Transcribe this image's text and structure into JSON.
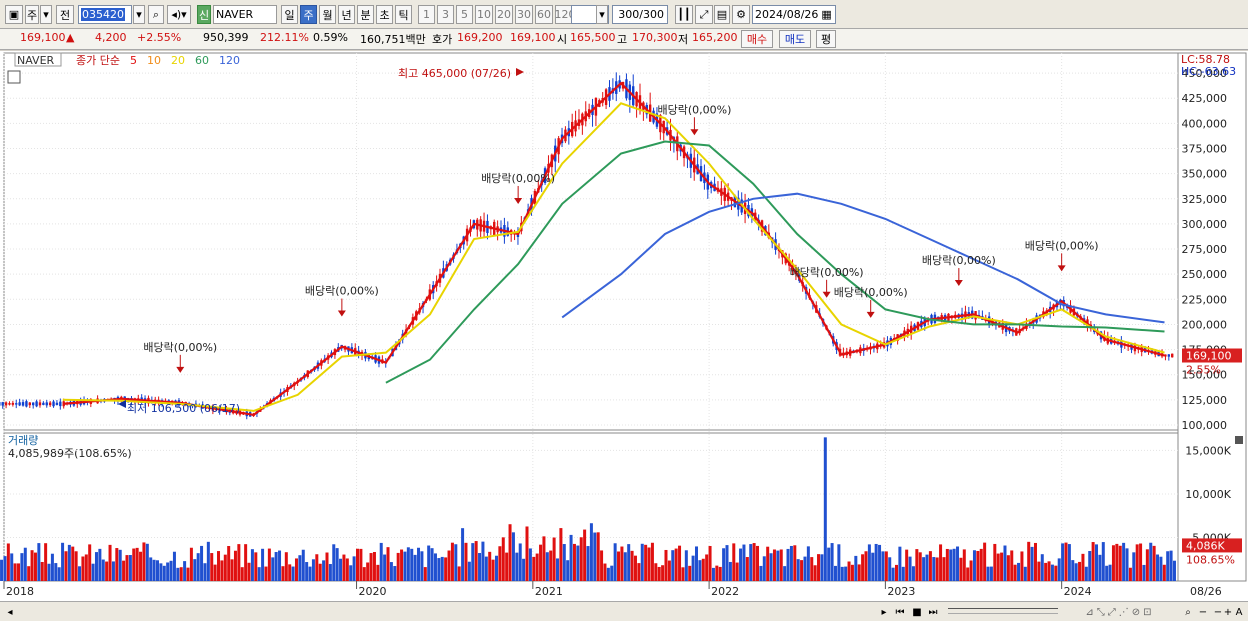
{
  "toolbar": {
    "period_label": "주",
    "prev_label": "전",
    "stock_code": "035420",
    "stock_name": "NAVER",
    "new_badge": "신",
    "timeframes": [
      {
        "label": "일",
        "active": false
      },
      {
        "label": "주",
        "active": true
      },
      {
        "label": "월",
        "active": false
      },
      {
        "label": "년",
        "active": false
      },
      {
        "label": "분",
        "active": false
      },
      {
        "label": "초",
        "active": false
      },
      {
        "label": "틱",
        "active": false
      }
    ],
    "intervals": [
      "1",
      "3",
      "5",
      "10",
      "20",
      "30",
      "60",
      "120"
    ],
    "count": "300",
    "count_total": "/300",
    "date": "2024/08/26"
  },
  "quote": {
    "price": "169,100",
    "change": "4,200",
    "change_pct": "+2.55%",
    "volume": "950,399",
    "volume_ratio": "212.11%",
    "turnover": "0.59%",
    "amount": "160,751백만",
    "bid_label": "호가",
    "bid1": "169,200",
    "bid2": "169,100",
    "open_label": "시",
    "open": "165,500",
    "high_label": "고",
    "high": "170,300",
    "low_label": "저",
    "low": "165,200",
    "buy_label": "매수",
    "sell_label": "매도",
    "eval_label": "평"
  },
  "legend": {
    "name": "NAVER",
    "ma_title": "종가 단순",
    "ma_periods": [
      {
        "label": "5",
        "color": "#e01010"
      },
      {
        "label": "10",
        "color": "#f08c1a"
      },
      {
        "label": "20",
        "color": "#e8d400"
      },
      {
        "label": "60",
        "color": "#2e9a5a"
      },
      {
        "label": "120",
        "color": "#3a64d8"
      }
    ]
  },
  "right_info": {
    "lc": "LC:58.78",
    "hc": "HC:-63.63",
    "price_tag": "169,100",
    "pct_tag": "2.55%"
  },
  "volume_panel": {
    "title": "거래량",
    "value": "4,085,989주(108.65%)",
    "tag": "4,086K",
    "tag_pct": "108.65%",
    "y_labels": [
      "15,000K",
      "10,000K",
      "5,000K"
    ]
  },
  "x_labels": [
    "2018",
    "2020",
    "2021",
    "2022",
    "2023",
    "2024",
    "08/26"
  ],
  "chart_data": [
    {
      "type": "line",
      "title": "NAVER 주봉",
      "price_ticks": [
        "450,000",
        "425,000",
        "400,000",
        "375,000",
        "350,000",
        "325,000",
        "300,000",
        "275,000",
        "250,000",
        "225,000",
        "200,000",
        "175,000",
        "150,000",
        "125,000",
        "100,000"
      ],
      "annotations": [
        {
          "text": "최고 465,000 (07/26)"
        },
        {
          "text": "최저 106,500 (06/17)"
        },
        {
          "text": "배당락(0,00%)",
          "x": "2019-01"
        },
        {
          "text": "배당락(0,00%)",
          "x": "2019-12"
        },
        {
          "text": "배당락(0,00%)",
          "x": "2020-12"
        },
        {
          "text": "배당락(0,00%)",
          "x": "2021-12"
        },
        {
          "text": "배당락(0,00%)",
          "x": "2022-09"
        },
        {
          "text": "배당락(0,00%)",
          "x": "2022-12"
        },
        {
          "text": "배당락(0,00%)",
          "x": "2023-06"
        },
        {
          "text": "배당락(0,00%)",
          "x": "2024-01"
        }
      ],
      "x": [
        "2018-05",
        "2018-09",
        "2019-01",
        "2019-06",
        "2019-09",
        "2019-12",
        "2020-03",
        "2020-06",
        "2020-09",
        "2020-12",
        "2021-03",
        "2021-07",
        "2021-10",
        "2022-01",
        "2022-04",
        "2022-07",
        "2022-10",
        "2023-01",
        "2023-04",
        "2023-07",
        "2023-10",
        "2024-01",
        "2024-04",
        "2024-08"
      ],
      "series": [
        {
          "name": "5",
          "values": [
            121000,
            126000,
            122000,
            110000,
            143000,
            178000,
            162000,
            230000,
            300000,
            290000,
            385000,
            440000,
            395000,
            340000,
            310000,
            250000,
            170000,
            180000,
            205000,
            210000,
            192000,
            223000,
            185000,
            169100
          ]
        },
        {
          "name": "20",
          "values": [
            125000,
            124000,
            121000,
            114000,
            130000,
            168000,
            172000,
            210000,
            285000,
            292000,
            360000,
            420000,
            405000,
            360000,
            305000,
            255000,
            200000,
            180000,
            198000,
            208000,
            200000,
            215000,
            188000,
            172000
          ]
        },
        {
          "name": "60",
          "values": [
            null,
            null,
            null,
            null,
            null,
            null,
            142000,
            165000,
            215000,
            260000,
            320000,
            370000,
            382000,
            378000,
            340000,
            290000,
            250000,
            215000,
            205000,
            200000,
            200000,
            198000,
            197000,
            193000
          ]
        },
        {
          "name": "120",
          "values": [
            null,
            null,
            null,
            null,
            null,
            null,
            null,
            null,
            null,
            null,
            207000,
            250000,
            290000,
            312000,
            325000,
            330000,
            320000,
            305000,
            285000,
            265000,
            245000,
            220000,
            210000,
            202000
          ]
        }
      ],
      "ylim": [
        95000,
        470000
      ]
    }
  ]
}
